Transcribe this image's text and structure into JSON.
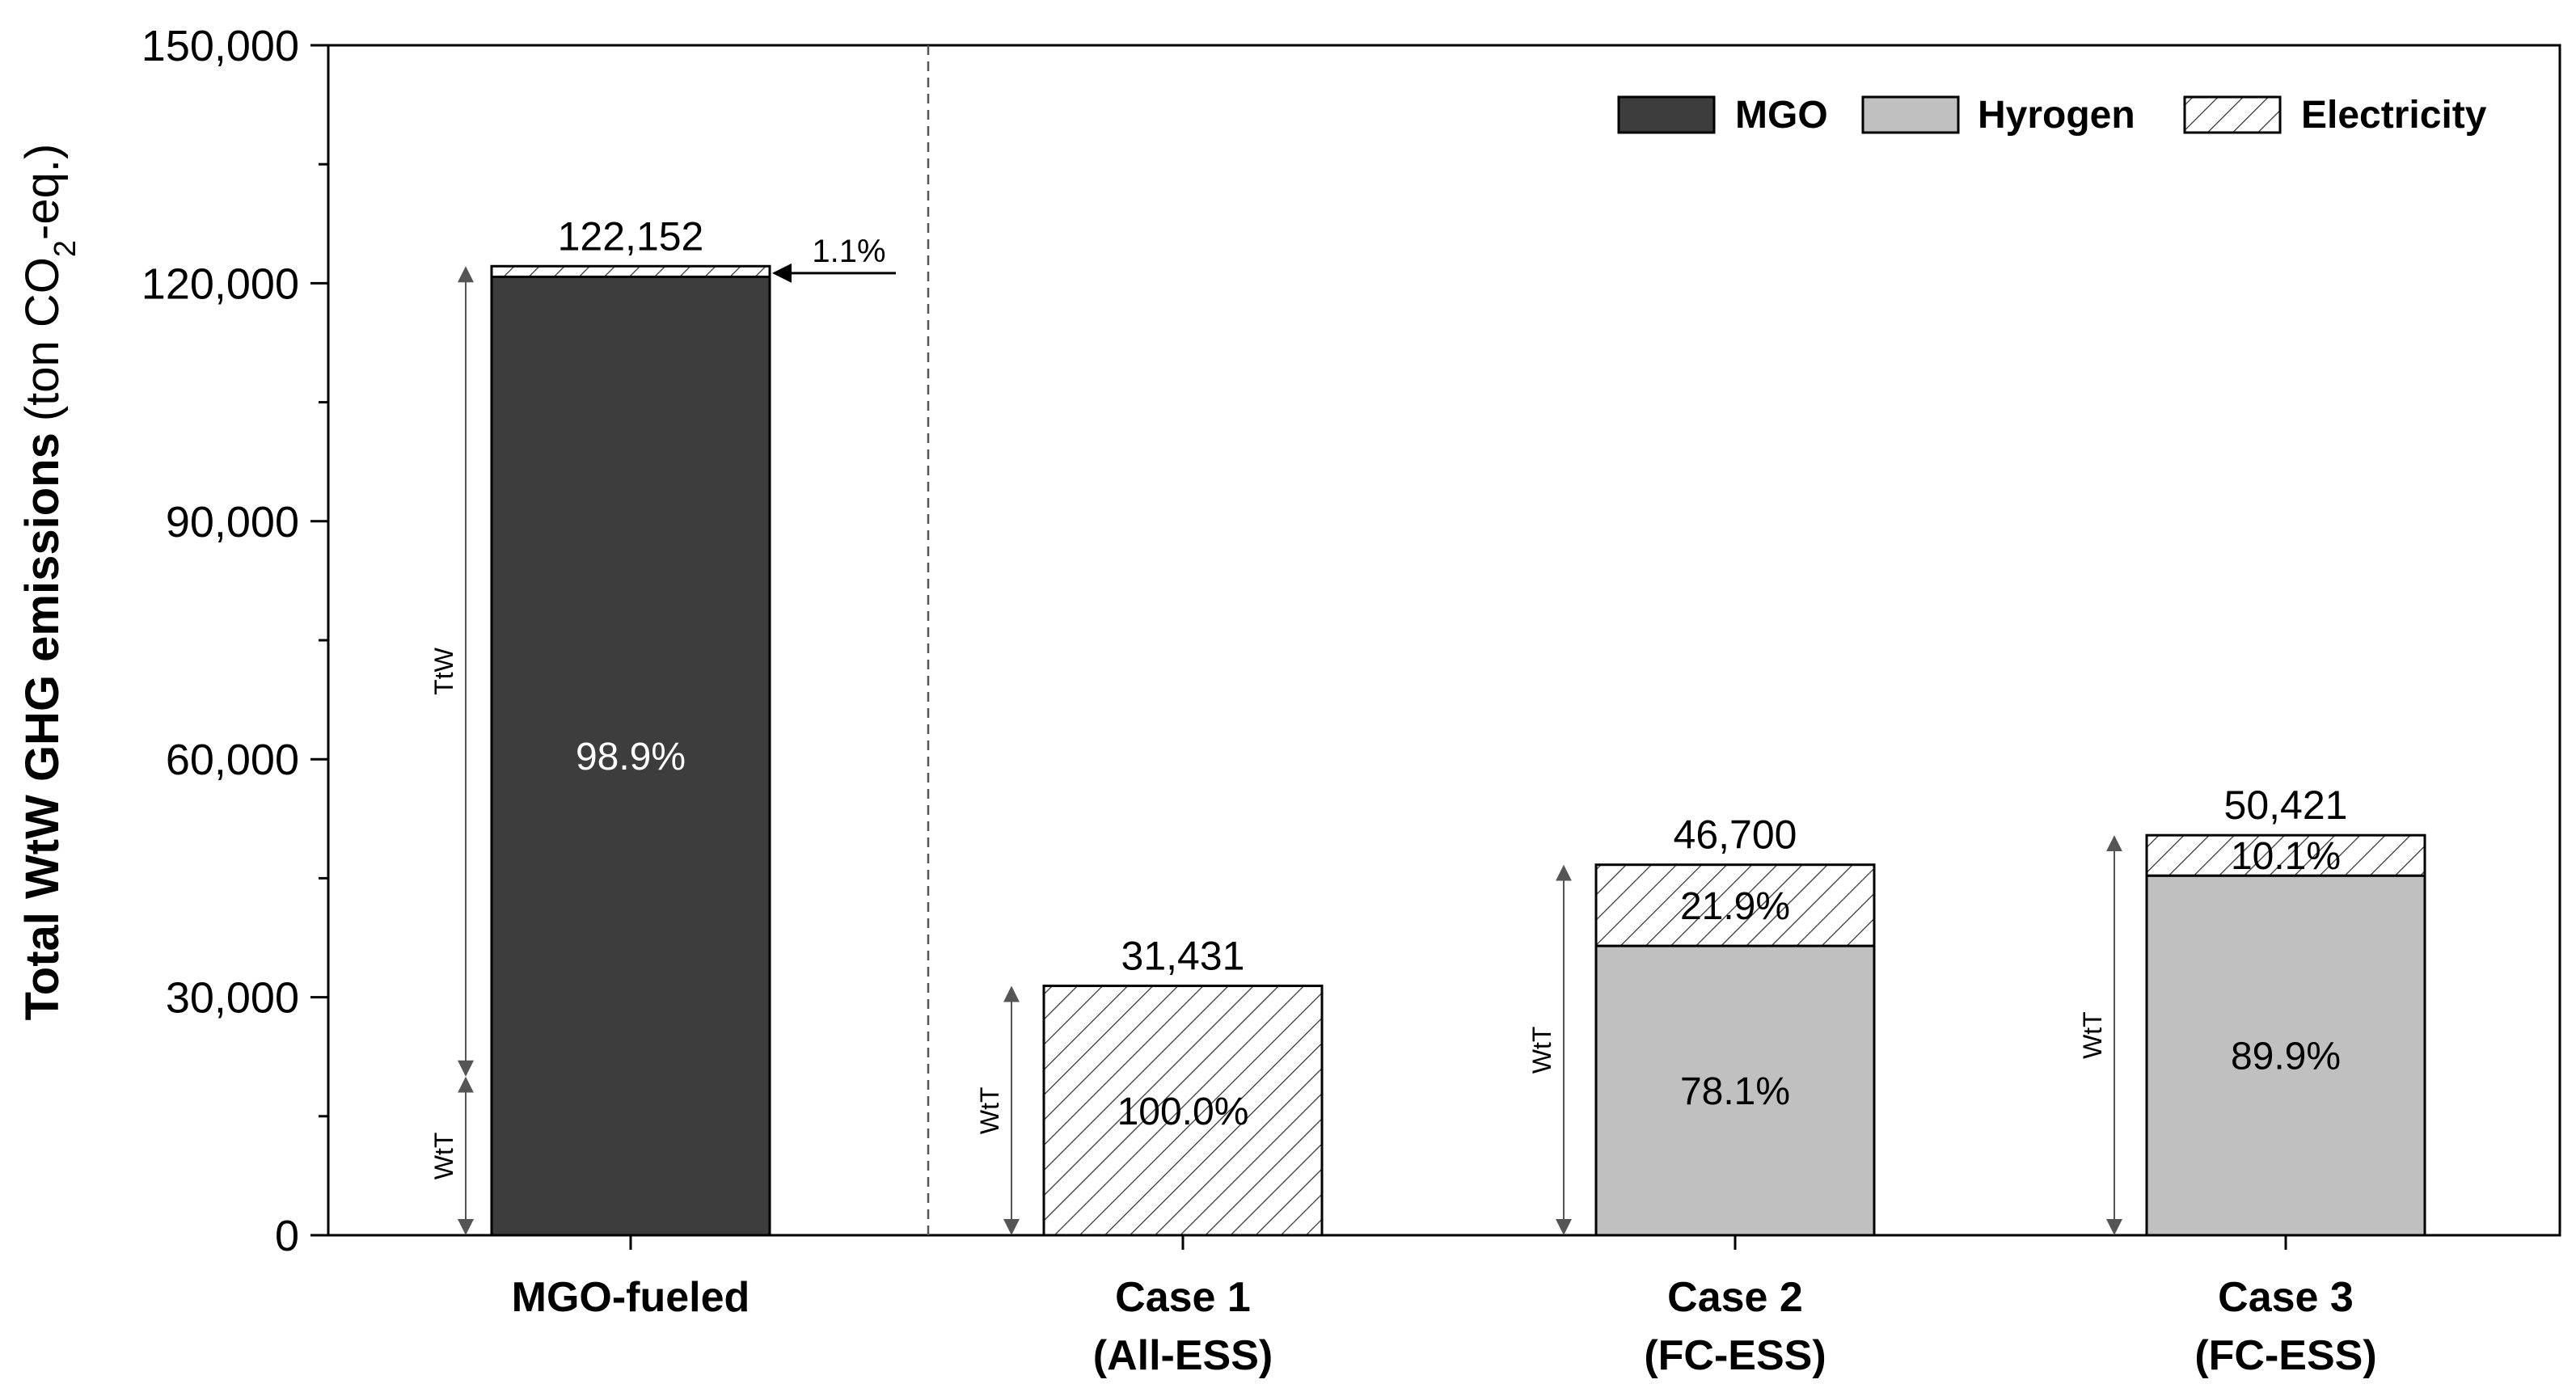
{
  "chart_data": {
    "type": "bar",
    "stacked": true,
    "ylabel_main": "Total WtW GHG emissions",
    "ylabel_unit_pre": "(ton CO",
    "ylabel_unit_sub": "2",
    "ylabel_unit_post": "-eq.)",
    "ylim": [
      0,
      150000
    ],
    "yticks": [
      0,
      30000,
      60000,
      90000,
      120000,
      150000
    ],
    "ytick_labels": [
      "0",
      "30,000",
      "60,000",
      "90,000",
      "120,000",
      "150,000"
    ],
    "categories": [
      {
        "line1": "MGO-fueled",
        "line2": ""
      },
      {
        "line1": "Case 1",
        "line2": "(All-ESS)"
      },
      {
        "line1": "Case 2",
        "line2": "(FC-ESS)"
      },
      {
        "line1": "Case 3",
        "line2": "(FC-ESS)"
      }
    ],
    "series": [
      {
        "name": "MGO",
        "key": "mgo",
        "color": "#3d3d3d",
        "values": [
          120810,
          0,
          0,
          0
        ]
      },
      {
        "name": "Hyrogen",
        "key": "hydrogen",
        "color": "#c0c0c0",
        "values": [
          0,
          0,
          36473,
          45328
        ]
      },
      {
        "name": "Electricity",
        "key": "electricity",
        "color": "hatch",
        "values": [
          1342,
          31431,
          10227,
          5093
        ]
      }
    ],
    "totals": [
      122152,
      31431,
      46700,
      50421
    ],
    "total_labels": [
      "122,152",
      "31,431",
      "46,700",
      "50,421"
    ],
    "segment_labels": [
      {
        "bar": 0,
        "series": "mgo",
        "text": "98.9%",
        "inverse": true
      },
      {
        "bar": 1,
        "series": "electricity",
        "text": "100.0%",
        "inverse": false
      },
      {
        "bar": 2,
        "series": "hydrogen",
        "text": "78.1%",
        "inverse": false
      },
      {
        "bar": 2,
        "series": "electricity",
        "text": "21.9%",
        "inverse": false
      },
      {
        "bar": 3,
        "series": "hydrogen",
        "text": "89.9%",
        "inverse": false
      },
      {
        "bar": 3,
        "series": "electricity",
        "text": "10.1%",
        "inverse": false
      }
    ],
    "annotations": {
      "electricity_share_mgo": "1.1%",
      "ttw_label": "TtW",
      "wtt_label": "WtT",
      "ttw_range": [
        20000,
        122152
      ],
      "wtt_range_mgo": [
        0,
        20000
      ]
    },
    "legend": {
      "position": "top-right",
      "items": [
        "MGO",
        "Hyrogen",
        "Electricity"
      ]
    }
  }
}
